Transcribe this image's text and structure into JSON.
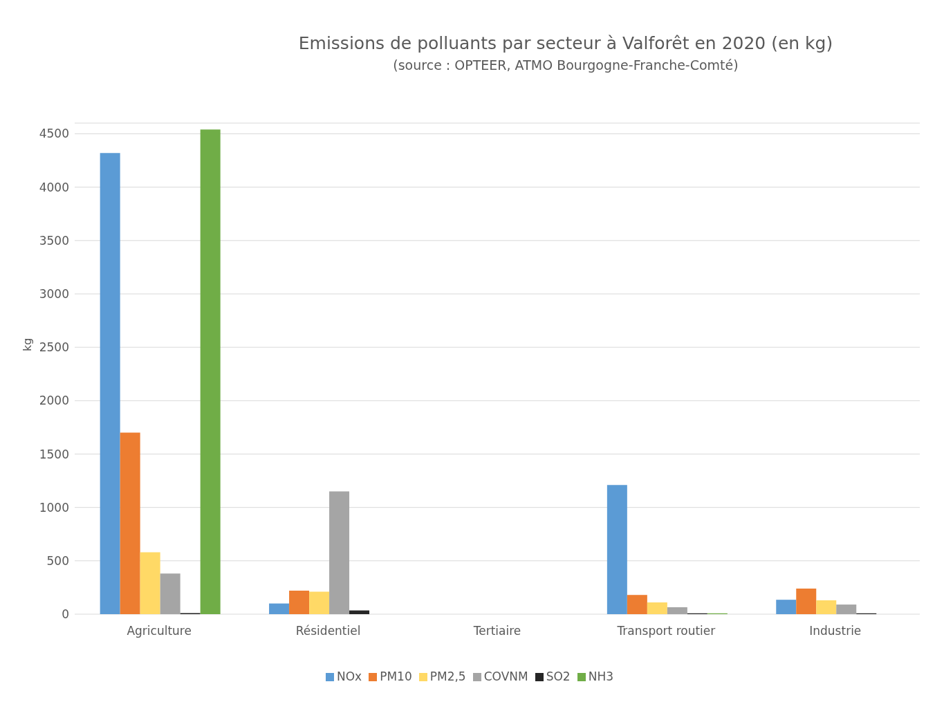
{
  "chart_data": {
    "type": "bar",
    "title": "Emissions  de polluants par secteur à Valforêt en 2020 (en kg)",
    "subtitle": "(source : OPTEER, ATMO Bourgogne-Franche-Comté)",
    "ylabel": "kg",
    "categories": [
      "Agriculture",
      "Résidentiel",
      "Tertiaire",
      "Transport routier",
      "Industrie"
    ],
    "series": [
      {
        "name": "NOx",
        "color": "#5b9bd5",
        "values": [
          4320,
          100,
          0,
          1210,
          135
        ]
      },
      {
        "name": "PM10",
        "color": "#ed7d31",
        "values": [
          1700,
          220,
          0,
          180,
          240
        ]
      },
      {
        "name": "PM2,5",
        "color": "#ffd966",
        "values": [
          580,
          210,
          0,
          110,
          130
        ]
      },
      {
        "name": "COVNM",
        "color": "#a5a5a5",
        "values": [
          380,
          1150,
          0,
          65,
          90
        ]
      },
      {
        "name": "SO2",
        "color": "#262626",
        "values": [
          10,
          35,
          0,
          8,
          8
        ]
      },
      {
        "name": "NH3",
        "color": "#70ad47",
        "values": [
          4540,
          0,
          0,
          8,
          0
        ]
      }
    ],
    "ylim": [
      0,
      4600
    ],
    "yticks": [
      0,
      500,
      1000,
      1500,
      2000,
      2500,
      3000,
      3500,
      4000,
      4500
    ],
    "grid": "y",
    "legend": "bottom"
  }
}
